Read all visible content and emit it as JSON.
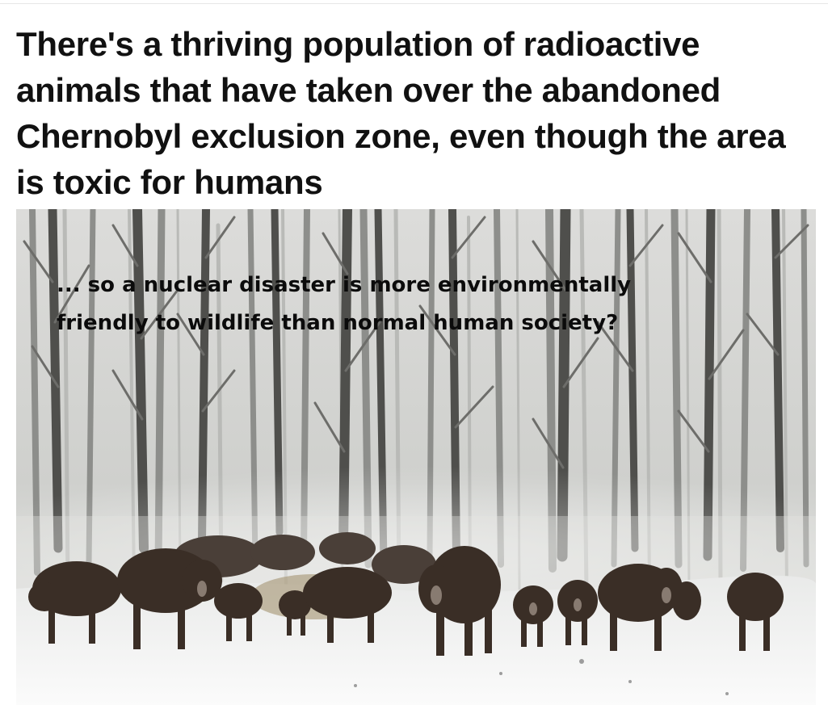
{
  "article": {
    "headline": "There's a thriving population of radioactive animals that have taken over the abandoned Chernobyl exclusion zone, even though the area is toxic for humans"
  },
  "photo": {
    "subject": "bison-herd-in-snowy-forest"
  },
  "caption_overlay": {
    "line1": "... so a nuclear disaster is more environmentally",
    "line2": "friendly to wildlife than normal human society?"
  },
  "colors": {
    "headline_text": "#111111",
    "overlay_text": "#0b0b0b",
    "snow": "#f4f4f4",
    "fog": "#d9dad8",
    "bison": "#3a2e26"
  }
}
